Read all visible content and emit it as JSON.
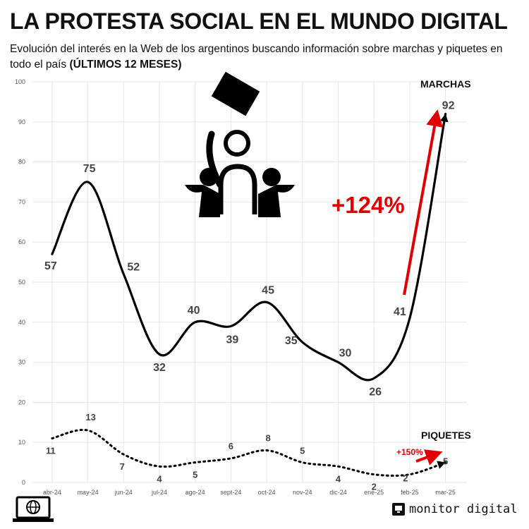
{
  "header": {
    "title": "LA PROTESTA SOCIAL EN EL MUNDO DIGITAL",
    "subtitle": "Evolución del interés en la Web de los argentinos buscando información sobre marchas y piquetes en todo el país",
    "subtitle_bold": "(ÚLTIMOS 12 MESES)"
  },
  "chart_data": {
    "type": "line",
    "categories": [
      "abr-24",
      "may-24",
      "jun-24",
      "jul-24",
      "ago-24",
      "sept-24",
      "oct-24",
      "nov-24",
      "dic-24",
      "ene-25",
      "feb-25",
      "mar-25"
    ],
    "ylim": [
      0,
      100
    ],
    "yticks": [
      "0",
      "10",
      "20",
      "30",
      "40",
      "50",
      "60",
      "70",
      "80",
      "90",
      "100"
    ],
    "grid": true,
    "series": [
      {
        "name": "MARCHAS",
        "style": "solid",
        "values": [
          57,
          75,
          52,
          32,
          40,
          39,
          45,
          35,
          30,
          26,
          41,
          92
        ]
      },
      {
        "name": "PIQUETES",
        "style": "dotted",
        "values": [
          11,
          13,
          7,
          4,
          5,
          6,
          8,
          5,
          4,
          2,
          2,
          5
        ]
      }
    ],
    "annotations": {
      "marchas_change": "+124%",
      "piquetes_change": "+150%"
    },
    "colors": {
      "line": "#000000",
      "accent": "#e00000",
      "grid": "#e6e6e6",
      "label": "#444444"
    }
  },
  "footer": {
    "brand": "monitor digital",
    "brand_icon": "monitor-icon",
    "badge_icon": "globe-laptop-icon"
  }
}
